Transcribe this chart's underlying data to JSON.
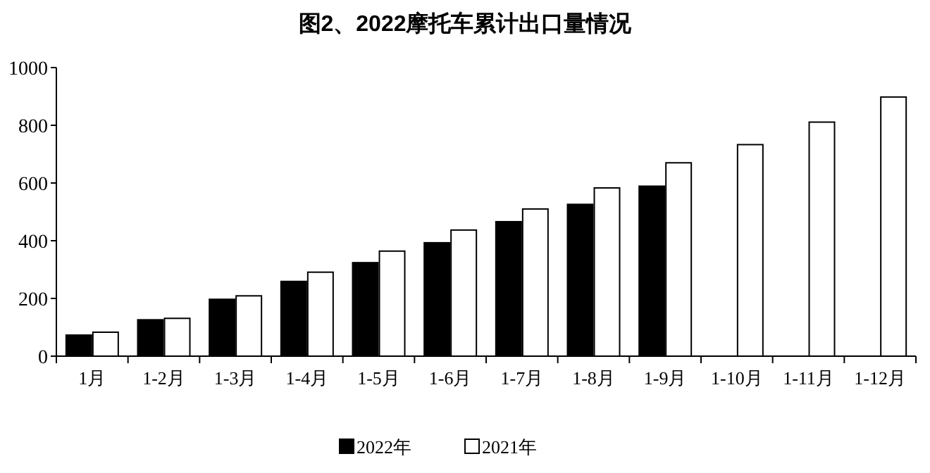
{
  "chart_data": {
    "type": "bar",
    "title": "图2、2022摩托车累计出口量情况",
    "categories": [
      "1月",
      "1-2月",
      "1-3月",
      "1-4月",
      "1-5月",
      "1-6月",
      "1-7月",
      "1-8月",
      "1-9月",
      "1-10月",
      "1-11月",
      "1-12月"
    ],
    "series": [
      {
        "name": "2022年",
        "color": "#000000",
        "values": [
          73,
          126,
          197,
          259,
          324,
          393,
          466,
          526,
          589,
          null,
          null,
          null
        ]
      },
      {
        "name": "2021年",
        "color": "#ffffff",
        "values": [
          83,
          131,
          209,
          291,
          364,
          437,
          510,
          583,
          670,
          733,
          811,
          898
        ]
      }
    ],
    "ylim": [
      0,
      1000
    ],
    "yticks": [
      0,
      200,
      400,
      600,
      800,
      1000
    ],
    "grid": false,
    "legend": "bottom"
  }
}
